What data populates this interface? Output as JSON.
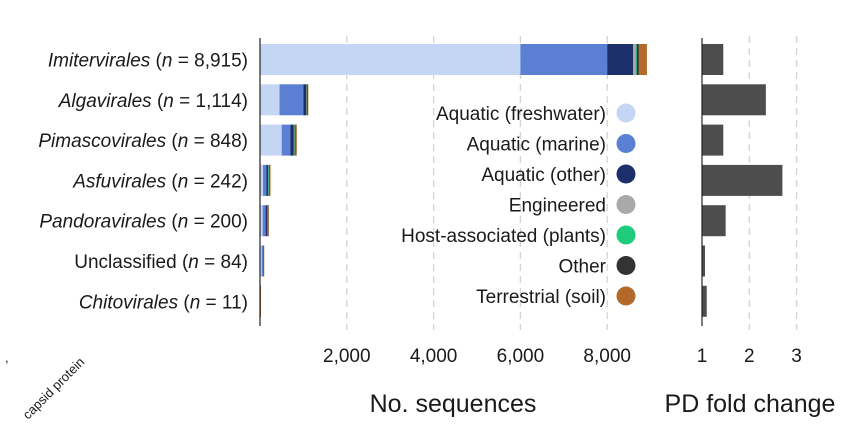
{
  "chart_data": [
    {
      "type": "bar",
      "orientation": "horizontal",
      "stacked": true,
      "categories": [
        {
          "name": "Imitervirales",
          "n": "8,915"
        },
        {
          "name": "Algavirales",
          "n": "1,114"
        },
        {
          "name": "Pimascovirales",
          "n": "848"
        },
        {
          "name": "Asfuvirales",
          "n": "242"
        },
        {
          "name": "Pandoravirales",
          "n": "200"
        },
        {
          "name": "Unclassified",
          "n": "84"
        },
        {
          "name": "Chitovirales",
          "n": "11"
        }
      ],
      "italic_names": [
        true,
        true,
        true,
        true,
        true,
        false,
        true
      ],
      "n_prefix": "(n = ",
      "n_suffix": ")",
      "series": [
        {
          "name": "Aquatic (freshwater)",
          "color": "#c5d6f4",
          "values": [
            6000,
            450,
            500,
            70,
            60,
            40,
            5
          ]
        },
        {
          "name": "Aquatic (marine)",
          "color": "#5b7fd3",
          "values": [
            2000,
            550,
            200,
            80,
            70,
            30,
            3
          ]
        },
        {
          "name": "Aquatic (other)",
          "color": "#1c2f6b",
          "values": [
            600,
            60,
            80,
            40,
            40,
            8,
            1
          ]
        },
        {
          "name": "Engineered",
          "color": "#a9a9a9",
          "values": [
            50,
            10,
            10,
            5,
            5,
            1,
            0
          ]
        },
        {
          "name": "Host-associated (plants)",
          "color": "#1fcb7c",
          "values": [
            30,
            5,
            10,
            10,
            5,
            1,
            0
          ]
        },
        {
          "name": "Other",
          "color": "#333333",
          "values": [
            50,
            20,
            20,
            20,
            10,
            2,
            1
          ]
        },
        {
          "name": "Terrestrial (soil)",
          "color": "#b3692a",
          "values": [
            185,
            19,
            28,
            17,
            10,
            2,
            1
          ]
        }
      ],
      "xlabel": "No. sequences",
      "xticks": [
        "2,000",
        "4,000",
        "6,000",
        "8,000"
      ],
      "xtick_values": [
        2000,
        4000,
        6000,
        8000
      ],
      "xlim": [
        0,
        9100
      ],
      "grid": "vertical dashed",
      "legend": "center-right, label then marker"
    },
    {
      "type": "bar",
      "orientation": "horizontal",
      "categories": [
        "Imitervirales",
        "Algavirales",
        "Pimascovirales",
        "Asfuvirales",
        "Pandoravirales",
        "Unclassified",
        "Chitovirales"
      ],
      "values": [
        1.45,
        2.35,
        1.45,
        2.7,
        1.5,
        1.0,
        1.1
      ],
      "color": "#4d4d4d",
      "xlabel": "PD fold change",
      "xticks": [
        "1",
        "2",
        "3"
      ],
      "xtick_values": [
        1,
        2,
        3
      ],
      "xlim": [
        1,
        3.35
      ],
      "grid": "vertical dashed"
    }
  ],
  "side_label": "capsid protein"
}
